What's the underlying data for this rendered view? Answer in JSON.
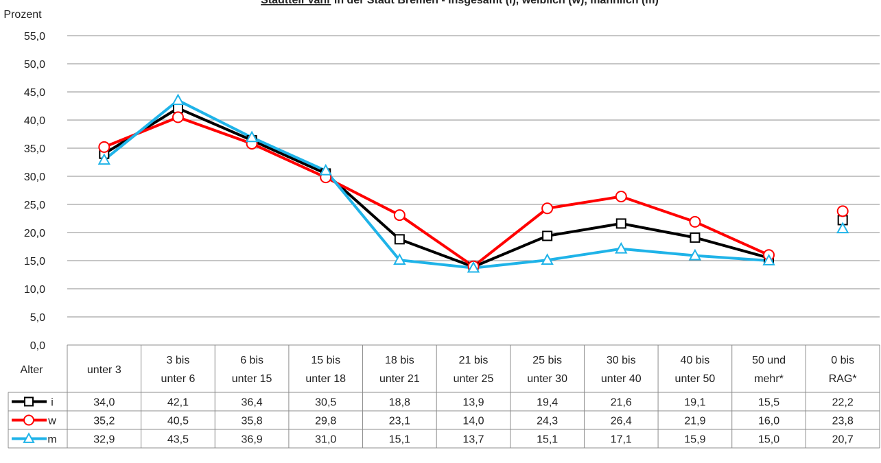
{
  "chart_data": {
    "type": "line",
    "title_underlined": "Stadtteil Vahr",
    "title_rest": " in der Stadt Bremen - insgesamt (i), weiblich (w), männlich (m)",
    "ylabel": "Prozent",
    "xlabel": "Alter",
    "ylim": [
      0,
      55
    ],
    "yticks": [
      "0,0",
      "5,0",
      "10,0",
      "15,0",
      "20,0",
      "25,0",
      "30,0",
      "35,0",
      "40,0",
      "45,0",
      "50,0",
      "55,0"
    ],
    "grid": true,
    "categories": [
      [
        "unter 3"
      ],
      [
        "3 bis",
        "unter 6"
      ],
      [
        "6 bis",
        "unter 15"
      ],
      [
        "15 bis",
        "unter 18"
      ],
      [
        "18 bis",
        "unter 21"
      ],
      [
        "21 bis",
        "unter 25"
      ],
      [
        "25 bis",
        "unter 30"
      ],
      [
        "30 bis",
        "unter 40"
      ],
      [
        "40 bis",
        "unter 50"
      ],
      [
        "50 und",
        "mehr*"
      ],
      [
        "0 bis",
        "RAG*"
      ]
    ],
    "connected_points": 10,
    "series": [
      {
        "name": "i",
        "color": "#000000",
        "marker": "square",
        "values": [
          34.0,
          42.1,
          36.4,
          30.5,
          18.8,
          13.9,
          19.4,
          21.6,
          19.1,
          15.5,
          22.2
        ],
        "labels": [
          "34,0",
          "42,1",
          "36,4",
          "30,5",
          "18,8",
          "13,9",
          "19,4",
          "21,6",
          "19,1",
          "15,5",
          "22,2"
        ]
      },
      {
        "name": "w",
        "color": "#ff0000",
        "marker": "circle",
        "values": [
          35.2,
          40.5,
          35.8,
          29.8,
          23.1,
          14.0,
          24.3,
          26.4,
          21.9,
          16.0,
          23.8
        ],
        "labels": [
          "35,2",
          "40,5",
          "35,8",
          "29,8",
          "23,1",
          "14,0",
          "24,3",
          "26,4",
          "21,9",
          "16,0",
          "23,8"
        ]
      },
      {
        "name": "m",
        "color": "#1fb3e8",
        "marker": "triangle",
        "values": [
          32.9,
          43.5,
          36.9,
          31.0,
          15.1,
          13.7,
          15.1,
          17.1,
          15.9,
          15.0,
          20.7
        ],
        "labels": [
          "32,9",
          "43,5",
          "36,9",
          "31,0",
          "15,1",
          "13,7",
          "15,1",
          "17,1",
          "15,9",
          "15,0",
          "20,7"
        ]
      }
    ]
  }
}
